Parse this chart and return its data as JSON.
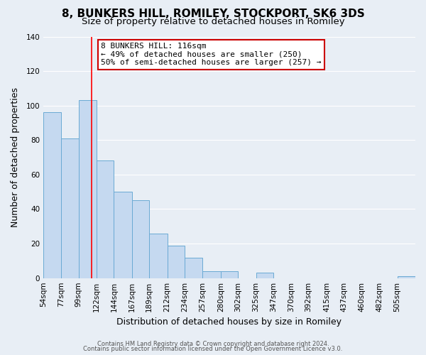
{
  "title": "8, BUNKERS HILL, ROMILEY, STOCKPORT, SK6 3DS",
  "subtitle": "Size of property relative to detached houses in Romiley",
  "xlabel": "Distribution of detached houses by size in Romiley",
  "ylabel": "Number of detached properties",
  "bar_labels": [
    "54sqm",
    "77sqm",
    "99sqm",
    "122sqm",
    "144sqm",
    "167sqm",
    "189sqm",
    "212sqm",
    "234sqm",
    "257sqm",
    "280sqm",
    "302sqm",
    "325sqm",
    "347sqm",
    "370sqm",
    "392sqm",
    "415sqm",
    "437sqm",
    "460sqm",
    "482sqm",
    "505sqm"
  ],
  "bar_values": [
    96,
    81,
    103,
    68,
    50,
    45,
    26,
    19,
    12,
    4,
    4,
    0,
    3,
    0,
    0,
    0,
    0,
    0,
    0,
    0,
    1
  ],
  "bar_edges": [
    54,
    77,
    99,
    122,
    144,
    167,
    189,
    212,
    234,
    257,
    280,
    302,
    325,
    347,
    370,
    392,
    415,
    437,
    460,
    482,
    505
  ],
  "bar_color": "#c5d9f0",
  "bar_edgecolor": "#6aaad4",
  "bar_linewidth": 0.7,
  "ylim": [
    0,
    140
  ],
  "yticks": [
    0,
    20,
    40,
    60,
    80,
    100,
    120,
    140
  ],
  "red_line_x": 116,
  "annotation_title": "8 BUNKERS HILL: 116sqm",
  "annotation_line1": "← 49% of detached houses are smaller (250)",
  "annotation_line2": "50% of semi-detached houses are larger (257) →",
  "footer_line1": "Contains HM Land Registry data © Crown copyright and database right 2024.",
  "footer_line2": "Contains public sector information licensed under the Open Government Licence v3.0.",
  "background_color": "#e8eef5",
  "plot_background": "#e8eef5",
  "grid_color": "#ffffff",
  "title_fontsize": 11,
  "subtitle_fontsize": 9.5,
  "axis_label_fontsize": 9,
  "tick_fontsize": 7.5,
  "footer_fontsize": 6
}
